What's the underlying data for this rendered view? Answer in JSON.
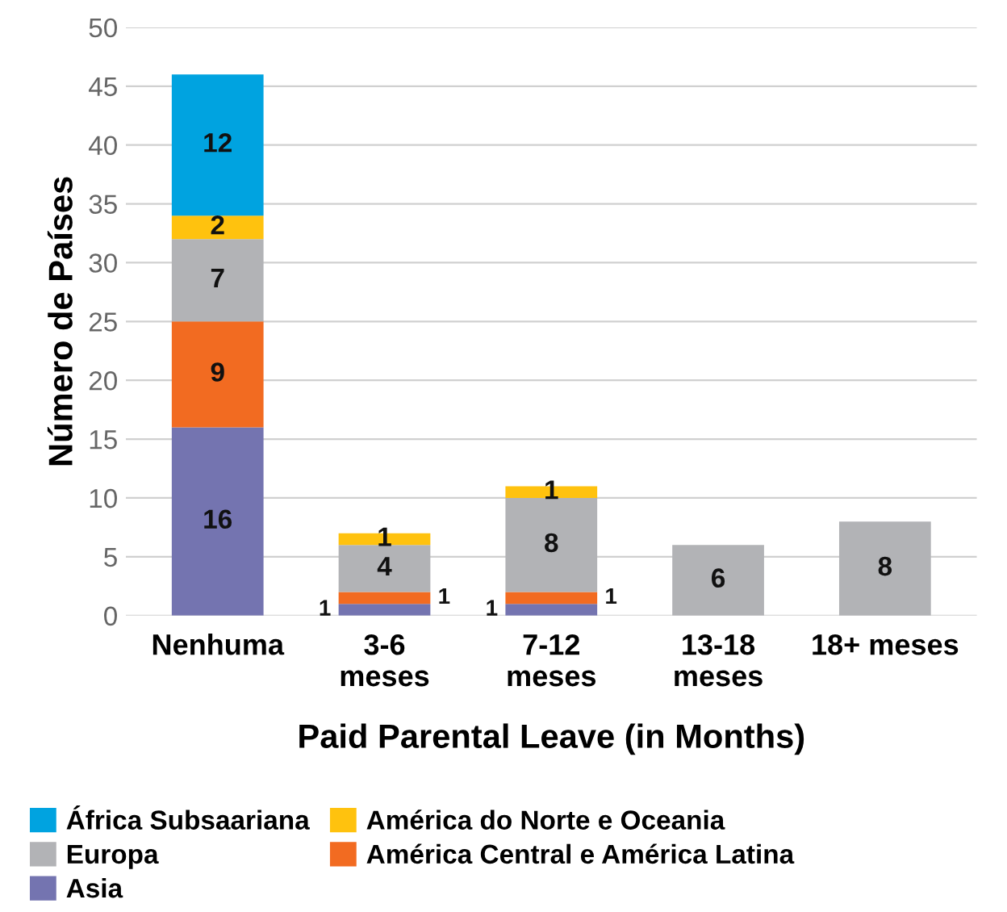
{
  "chart_data": {
    "type": "bar",
    "stacked": true,
    "xlabel": "Paid Parental Leave (in Months)",
    "ylabel": "Número de Países",
    "categories": [
      "Nenhuma",
      "3-6\nmeses",
      "7-12\nmeses",
      "13-18\nmeses",
      "18+ meses"
    ],
    "series": [
      {
        "name": "Asia",
        "color": "#7474b0",
        "values": [
          16,
          1,
          1,
          0,
          0
        ],
        "value_labels": [
          "16",
          "1",
          "1",
          null,
          null
        ]
      },
      {
        "name": "América Central e América Latina",
        "color": "#f26b21",
        "values": [
          9,
          1,
          1,
          0,
          0
        ],
        "value_labels": [
          "9",
          "1",
          "1",
          null,
          null
        ]
      },
      {
        "name": "Europa",
        "color": "#b2b3b6",
        "values": [
          7,
          4,
          8,
          6,
          8
        ],
        "value_labels": [
          "7",
          "4",
          "8",
          "6",
          "8"
        ]
      },
      {
        "name": "América do Norte e Oceania",
        "color": "#ffc20e",
        "values": [
          2,
          1,
          1,
          0,
          0
        ],
        "value_labels": [
          "2",
          "1",
          "1",
          null,
          null
        ]
      },
      {
        "name": "África Subsaariana",
        "color": "#00a3e0",
        "values": [
          12,
          0,
          0,
          0,
          0
        ],
        "value_labels": [
          "12",
          null,
          null,
          null,
          null
        ]
      }
    ],
    "ylim": [
      0,
      50
    ],
    "yticks": [
      0,
      5,
      10,
      15,
      20,
      25,
      30,
      35,
      40,
      45,
      50
    ],
    "grid": "y",
    "legend": "bottom"
  }
}
